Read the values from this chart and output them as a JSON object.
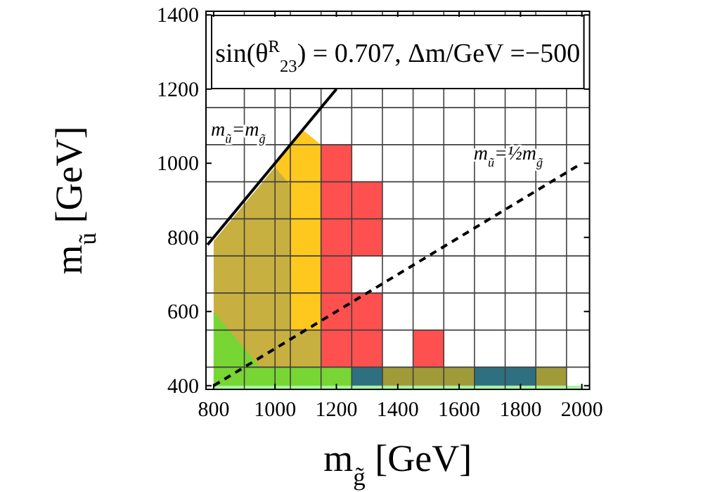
{
  "chart_data": {
    "type": "area",
    "title": "sin(θ$^{R}$$_{23}$) =  0.707, Δm/GeV =−500",
    "xlabel": "m$_{g̃}$ [GeV]",
    "ylabel": "m$_{ũ}$ [GeV]",
    "xlim": [
      775,
      2025
    ],
    "ylim": [
      390,
      1410
    ],
    "xticks": [
      800,
      1000,
      1200,
      1400,
      1600,
      1800,
      2000
    ],
    "yticks": [
      400,
      600,
      800,
      1000,
      1200,
      1400
    ],
    "series": [
      {
        "color": "#ffc81e",
        "x": [
          1000,
          1050,
          1090,
          1150
        ],
        "values": [
          995,
          1045,
          1090,
          1050
        ]
      },
      {
        "color": "#c8b040",
        "x": [
          800,
          950,
          1000,
          1050,
          1050,
          1150
        ],
        "values": [
          790,
          940,
          990,
          940,
          550,
          550
        ]
      },
      {
        "color": "#77d633",
        "x": [
          800,
          950,
          1250
        ],
        "values": [
          600,
          450,
          450
        ]
      },
      {
        "color": "#a8f5a0",
        "x": [
          800,
          2000
        ],
        "values": [
          400,
          400
        ]
      },
      {
        "type": "bar",
        "color": "#ff5050",
        "x": [
          1200,
          1300,
          1500
        ],
        "values": [
          600,
          200,
          100
        ],
        "base": [
          450,
          450,
          450
        ]
      },
      {
        "type": "bar",
        "color": "#ff5050",
        "x": [
          1300
        ],
        "values": [
          200
        ],
        "base": [
          750
        ]
      },
      {
        "type": "bar",
        "color": "#2e7080",
        "x": [
          1300,
          1700,
          1800
        ],
        "values": [
          50,
          50,
          50
        ],
        "base": [
          400,
          400,
          400
        ]
      },
      {
        "type": "bar",
        "color": "#a09a38",
        "x": [
          1400,
          1500,
          1600,
          1900
        ],
        "values": [
          50,
          50,
          50,
          50
        ],
        "base": [
          400,
          400,
          400,
          400
        ]
      },
      {
        "type": "line",
        "color": "#000000",
        "x": [
          780,
          1200
        ],
        "values": [
          780,
          1200
        ]
      },
      {
        "type": "line",
        "color": "#000000",
        "line_style": "dashed",
        "x": [
          800,
          2000
        ],
        "values": [
          400,
          1000
        ]
      }
    ],
    "ref_lines": [
      {
        "axis": "x",
        "value": 900,
        "color": "#404040"
      },
      {
        "axis": "x",
        "value": 1000,
        "color": "#404040"
      },
      {
        "axis": "x",
        "value": 1050,
        "color": "#404040"
      },
      {
        "axis": "x",
        "value": 1150,
        "color": "#404040"
      },
      {
        "axis": "x",
        "value": 1250,
        "color": "#404040"
      },
      {
        "axis": "x",
        "value": 1350,
        "color": "#404040"
      },
      {
        "axis": "x",
        "value": 1450,
        "color": "#404040"
      },
      {
        "axis": "x",
        "value": 1550,
        "color": "#404040"
      },
      {
        "axis": "x",
        "value": 1650,
        "color": "#404040"
      },
      {
        "axis": "x",
        "value": 1750,
        "color": "#404040"
      },
      {
        "axis": "x",
        "value": 1850,
        "color": "#404040"
      },
      {
        "axis": "x",
        "value": 1950,
        "color": "#404040"
      },
      {
        "axis": "y",
        "value": 450,
        "color": "#404040"
      },
      {
        "axis": "y",
        "value": 550,
        "color": "#404040"
      },
      {
        "axis": "y",
        "value": 650,
        "color": "#404040"
      },
      {
        "axis": "y",
        "value": 750,
        "color": "#404040"
      },
      {
        "axis": "y",
        "value": 850,
        "color": "#404040"
      },
      {
        "axis": "y",
        "value": 950,
        "color": "#404040"
      },
      {
        "axis": "y",
        "value": 1050,
        "color": "#404040"
      },
      {
        "axis": "y",
        "value": 1150,
        "color": "#404040"
      }
    ],
    "annotations": [
      {
        "text": "m$_{ũ}$=m$_{g̃}$",
        "x": 880,
        "y": 1075
      },
      {
        "text": "m$_{ũ}$=½m$_{g̃}$",
        "x": 1760,
        "y": 1010
      }
    ]
  }
}
